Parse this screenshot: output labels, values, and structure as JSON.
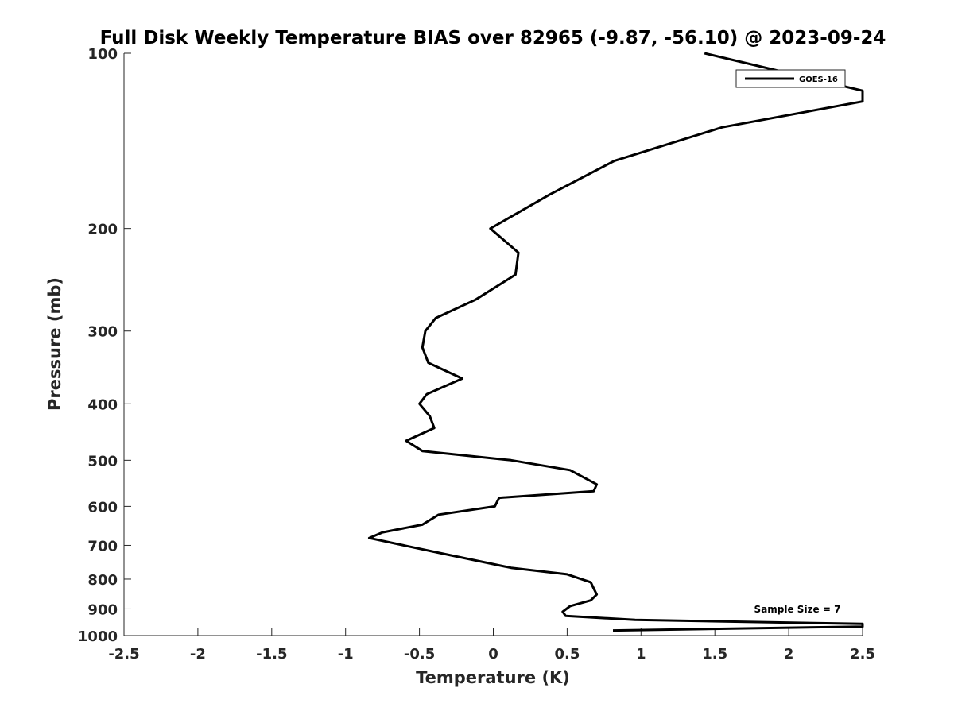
{
  "chart_data": {
    "type": "line",
    "title": "Full Disk Weekly Temperature BIAS over 82965 (-9.87, -56.10) @ 2023-09-24",
    "xlabel": "Temperature (K)",
    "ylabel": "Pressure (mb)",
    "xlim": [
      -2.5,
      2.5
    ],
    "ylim": [
      100,
      1000
    ],
    "y_scale": "log",
    "y_reversed": true,
    "x_ticks": [
      -2.5,
      -2,
      -1.5,
      -1,
      -0.5,
      0,
      0.5,
      1,
      1.5,
      2,
      2.5
    ],
    "x_tick_labels": [
      "-2.5",
      "-2",
      "-1.5",
      "-1",
      "-0.5",
      "0",
      "0.5",
      "1",
      "1.5",
      "2",
      "2.5"
    ],
    "y_ticks": [
      100,
      200,
      300,
      400,
      500,
      600,
      700,
      800,
      900,
      1000
    ],
    "y_tick_labels": [
      "100",
      "200",
      "300",
      "400",
      "500",
      "600",
      "700",
      "800",
      "900",
      "1000"
    ],
    "grid": false,
    "legend_position": "top-right",
    "series": [
      {
        "name": "GOES-16",
        "color": "#000000",
        "points": [
          {
            "x": 1.43,
            "y": 100
          },
          {
            "x": 2.5,
            "y": 116
          },
          {
            "x": 2.5,
            "y": 121
          },
          {
            "x": 1.55,
            "y": 134
          },
          {
            "x": 0.82,
            "y": 153
          },
          {
            "x": 0.38,
            "y": 175
          },
          {
            "x": -0.02,
            "y": 200
          },
          {
            "x": 0.17,
            "y": 220
          },
          {
            "x": 0.15,
            "y": 240
          },
          {
            "x": -0.12,
            "y": 265
          },
          {
            "x": -0.39,
            "y": 285
          },
          {
            "x": -0.46,
            "y": 300
          },
          {
            "x": -0.48,
            "y": 320
          },
          {
            "x": -0.44,
            "y": 340
          },
          {
            "x": -0.21,
            "y": 362
          },
          {
            "x": -0.45,
            "y": 385
          },
          {
            "x": -0.5,
            "y": 400
          },
          {
            "x": -0.43,
            "y": 420
          },
          {
            "x": -0.4,
            "y": 440
          },
          {
            "x": -0.59,
            "y": 463
          },
          {
            "x": -0.48,
            "y": 482
          },
          {
            "x": 0.12,
            "y": 500
          },
          {
            "x": 0.52,
            "y": 520
          },
          {
            "x": 0.7,
            "y": 550
          },
          {
            "x": 0.68,
            "y": 565
          },
          {
            "x": 0.04,
            "y": 580
          },
          {
            "x": 0.01,
            "y": 600
          },
          {
            "x": -0.37,
            "y": 620
          },
          {
            "x": -0.48,
            "y": 645
          },
          {
            "x": -0.75,
            "y": 665
          },
          {
            "x": -0.84,
            "y": 680
          },
          {
            "x": -0.38,
            "y": 720
          },
          {
            "x": 0.12,
            "y": 765
          },
          {
            "x": 0.5,
            "y": 785
          },
          {
            "x": 0.66,
            "y": 810
          },
          {
            "x": 0.68,
            "y": 830
          },
          {
            "x": 0.7,
            "y": 850
          },
          {
            "x": 0.66,
            "y": 870
          },
          {
            "x": 0.52,
            "y": 890
          },
          {
            "x": 0.47,
            "y": 910
          },
          {
            "x": 0.49,
            "y": 925
          },
          {
            "x": 0.96,
            "y": 940
          },
          {
            "x": 2.5,
            "y": 955
          },
          {
            "x": 2.5,
            "y": 965
          },
          {
            "x": 0.81,
            "y": 980
          }
        ]
      }
    ],
    "annotations": [
      {
        "text": "Sample Size = 7",
        "position": "bottom-right"
      }
    ]
  }
}
